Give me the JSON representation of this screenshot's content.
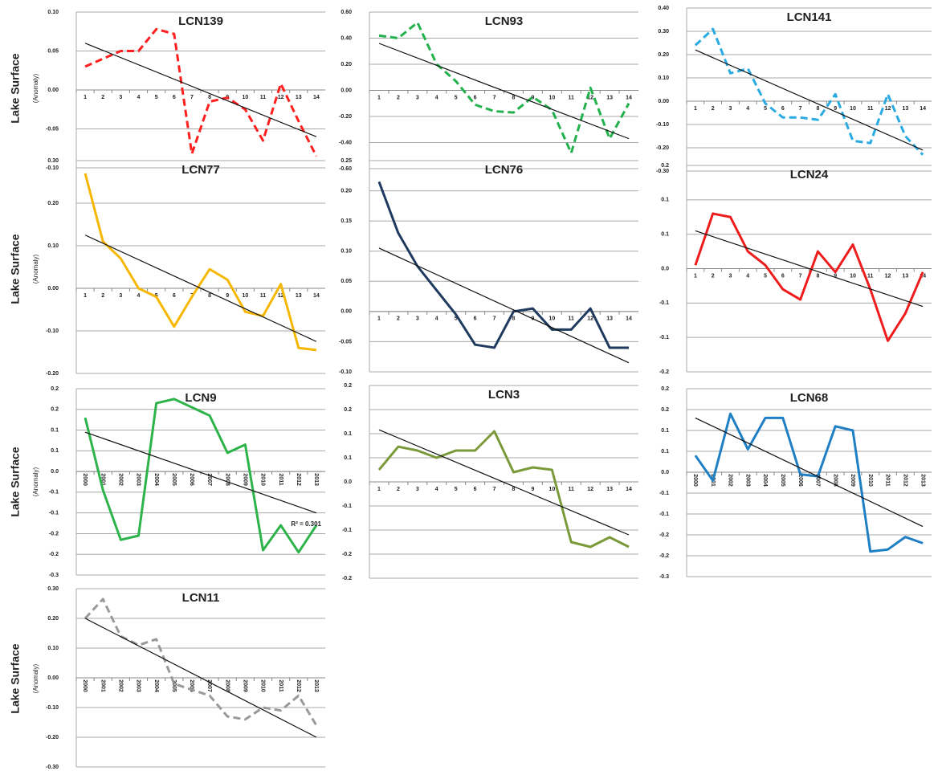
{
  "row_labels": [
    {
      "title": "Lake Surface",
      "subtitle": "(Anomaly)"
    },
    {
      "title": "Lake Surface",
      "subtitle": "(Anomaly)"
    },
    {
      "title": "Lake Surface",
      "subtitle": "(Anomaly)"
    },
    {
      "title": "Lake Surface",
      "subtitle": "(Anomaly)"
    }
  ],
  "chart_data": [
    {
      "type": "line",
      "title": "LCN139",
      "categories": [
        1,
        2,
        3,
        4,
        5,
        6,
        7,
        8,
        9,
        10,
        11,
        12,
        13,
        14
      ],
      "color": "#ff1f1f",
      "dashed": true,
      "values": [
        0.03,
        0.04,
        0.05,
        0.05,
        0.078,
        0.072,
        -0.082,
        -0.015,
        -0.01,
        -0.025,
        -0.065,
        0.008,
        -0.04,
        -0.085
      ],
      "trend": [
        0.06,
        -0.06
      ],
      "ylim": [
        -0.1,
        0.1
      ],
      "yticks": [
        {
          "value": -0.1,
          "label": "-0.10"
        },
        -0.05,
        {
          "value": 0,
          "label": "0.00"
        },
        0.05,
        {
          "value": 0.1,
          "label": "0.10"
        }
      ],
      "grid": true
    },
    {
      "type": "line",
      "title": "LCN93",
      "categories": [
        1,
        2,
        3,
        4,
        5,
        6,
        7,
        8,
        9,
        10,
        11,
        12,
        13,
        14
      ],
      "color": "#22b14c",
      "dashed": true,
      "values": [
        0.42,
        0.4,
        0.52,
        0.2,
        0.07,
        -0.11,
        -0.16,
        -0.17,
        -0.05,
        -0.15,
        -0.48,
        0.02,
        -0.37,
        -0.1
      ],
      "trend": [
        0.36,
        -0.37
      ],
      "ylim": [
        -0.6,
        0.6
      ],
      "yticks": [
        {
          "value": -0.6,
          "label": "-0.60"
        },
        {
          "value": -0.4,
          "label": "-0.40"
        },
        {
          "value": -0.2,
          "label": "-0.20"
        },
        {
          "value": 0,
          "label": "0.00"
        },
        {
          "value": 0.2,
          "label": "0.20"
        },
        {
          "value": 0.4,
          "label": "0.40"
        },
        {
          "value": 0.6,
          "label": "0.60"
        }
      ],
      "grid": true
    },
    {
      "type": "line",
      "title": "LCN141",
      "categories": [
        1,
        2,
        3,
        4,
        5,
        6,
        7,
        8,
        9,
        10,
        11,
        12,
        13,
        14
      ],
      "color": "#29abe2",
      "dashed": true,
      "values": [
        0.24,
        0.31,
        0.12,
        0.14,
        -0.01,
        -0.07,
        -0.07,
        -0.08,
        0.03,
        -0.17,
        -0.18,
        0.03,
        -0.15,
        -0.23
      ],
      "trend": [
        0.22,
        -0.21
      ],
      "ylim": [
        -0.3,
        0.4
      ],
      "yticks": [
        {
          "value": -0.3,
          "label": "-0.30"
        },
        {
          "value": -0.2,
          "label": "-0.20"
        },
        {
          "value": -0.1,
          "label": "-0.10"
        },
        {
          "value": 0,
          "label": "0.00"
        },
        {
          "value": 0.1,
          "label": "0.10"
        },
        {
          "value": 0.2,
          "label": "0.20"
        },
        {
          "value": 0.3,
          "label": "0.30"
        },
        {
          "value": 0.4,
          "label": "0.40"
        }
      ],
      "grid": true
    },
    {
      "type": "line",
      "title": "LCN77",
      "categories": [
        1,
        2,
        3,
        4,
        5,
        6,
        7,
        8,
        9,
        10,
        11,
        12,
        13,
        14
      ],
      "color": "#f5b700",
      "dashed": false,
      "values": [
        0.27,
        0.11,
        0.07,
        0,
        -0.02,
        -0.09,
        -0.02,
        0.045,
        0.02,
        -0.055,
        -0.065,
        0.01,
        -0.14,
        -0.145
      ],
      "trend": [
        0.125,
        -0.125
      ],
      "ylim": [
        -0.2,
        0.3
      ],
      "yticks": [
        {
          "value": -0.2,
          "label": "-0.20"
        },
        {
          "value": -0.1,
          "label": "-0.10"
        },
        {
          "value": 0,
          "label": "0.00"
        },
        {
          "value": 0.1,
          "label": "0.10"
        },
        {
          "value": 0.2,
          "label": "0.20"
        },
        {
          "value": 0.3,
          "label": "0.30"
        }
      ],
      "grid": true
    },
    {
      "type": "line",
      "title": "LCN76",
      "categories": [
        1,
        2,
        3,
        4,
        5,
        6,
        7,
        8,
        9,
        10,
        11,
        12,
        13,
        14
      ],
      "color": "#1f3a5f",
      "dashed": false,
      "values": [
        0.215,
        0.13,
        0.075,
        0.035,
        -0.005,
        -0.055,
        -0.06,
        0,
        0.005,
        -0.03,
        -0.03,
        0.005,
        -0.06,
        -0.06
      ],
      "trend": [
        0.105,
        -0.085
      ],
      "ylim": [
        -0.1,
        0.25
      ],
      "yticks": [
        {
          "value": -0.1,
          "label": "-0.10"
        },
        -0.05,
        {
          "value": 0,
          "label": "0.00"
        },
        0.05,
        {
          "value": 0.1,
          "label": "0.10"
        },
        0.15,
        {
          "value": 0.2,
          "label": "0.20"
        },
        0.25
      ],
      "grid": true
    },
    {
      "type": "line",
      "title": "LCN24",
      "categories": [
        1,
        2,
        3,
        4,
        5,
        6,
        7,
        8,
        9,
        10,
        11,
        12,
        13,
        14
      ],
      "color": "#ee1c1c",
      "dashed": false,
      "values": [
        0.005,
        0.08,
        0.075,
        0.025,
        0.005,
        -0.03,
        -0.045,
        0.025,
        -0.005,
        0.035,
        -0.03,
        -0.105,
        -0.065,
        -0.005
      ],
      "trend": [
        0.055,
        -0.055
      ],
      "ylim": [
        -0.15,
        0.15
      ],
      "yticks": [
        {
          "value": -0.15,
          "label": "-0.2"
        },
        {
          "value": -0.1,
          "label": "-0.1"
        },
        {
          "value": -0.05,
          "label": "-0.1"
        },
        {
          "value": 0,
          "label": "0.0"
        },
        {
          "value": 0.05,
          "label": "0.1"
        },
        {
          "value": 0.1,
          "label": "0.1"
        },
        {
          "value": 0.15,
          "label": "0.2"
        }
      ],
      "grid": true
    },
    {
      "type": "line",
      "title": "LCN9",
      "categories": [
        2000,
        2001,
        2002,
        2003,
        2004,
        2005,
        2006,
        2007,
        2008,
        2009,
        2010,
        2011,
        2012,
        2013
      ],
      "color": "#2db34a",
      "dashed": false,
      "values": [
        0.13,
        -0.045,
        -0.165,
        -0.155,
        0.165,
        0.175,
        0.155,
        0.135,
        0.045,
        0.065,
        -0.19,
        -0.13,
        -0.195,
        -0.13
      ],
      "trend": [
        0.095,
        -0.1
      ],
      "annotation": "R² = 0.301",
      "ylim": [
        -0.25,
        0.2
      ],
      "yticks": [
        {
          "value": -0.25,
          "label": "-0.3"
        },
        {
          "value": -0.2,
          "label": "-0.2"
        },
        {
          "value": -0.15,
          "label": "-0.2"
        },
        {
          "value": -0.1,
          "label": "-0.1"
        },
        {
          "value": -0.05,
          "label": "-0.1"
        },
        {
          "value": 0,
          "label": "0.0"
        },
        {
          "value": 0.05,
          "label": "0.1"
        },
        {
          "value": 0.1,
          "label": "0.1"
        },
        {
          "value": 0.15,
          "label": "0.2"
        },
        {
          "value": 0.2,
          "label": "0.2"
        }
      ],
      "grid": true
    },
    {
      "type": "line",
      "title": "LCN3",
      "categories": [
        1,
        2,
        3,
        4,
        5,
        6,
        7,
        8,
        9,
        10,
        11,
        12,
        13,
        14
      ],
      "color": "#7a9a3a",
      "dashed": false,
      "values": [
        0.025,
        0.073,
        0.065,
        0.05,
        0.065,
        0.065,
        0.105,
        0.02,
        0.03,
        0.025,
        -0.125,
        -0.135,
        -0.115,
        -0.135
      ],
      "trend": [
        0.108,
        -0.11
      ],
      "ylim": [
        -0.2,
        0.2
      ],
      "yticks": [
        {
          "value": -0.2,
          "label": "-0.2"
        },
        {
          "value": -0.15,
          "label": "-0.2"
        },
        {
          "value": -0.1,
          "label": "-0.1"
        },
        {
          "value": -0.05,
          "label": "-0.1"
        },
        {
          "value": 0,
          "label": "0.0"
        },
        {
          "value": 0.05,
          "label": "0.1"
        },
        {
          "value": 0.1,
          "label": "0.1"
        },
        {
          "value": 0.15,
          "label": "0.2"
        },
        {
          "value": 0.2,
          "label": "0.2"
        }
      ],
      "grid": true
    },
    {
      "type": "line",
      "title": "LCN68",
      "categories": [
        2000,
        2001,
        2002,
        2003,
        2004,
        2005,
        2006,
        2007,
        2008,
        2009,
        2010,
        2011,
        2012,
        2013
      ],
      "color": "#1f7fc4",
      "dashed": false,
      "values": [
        0.04,
        -0.02,
        0.14,
        0.055,
        0.13,
        0.13,
        -0.005,
        -0.01,
        0.11,
        0.1,
        -0.19,
        -0.185,
        -0.155,
        -0.17
      ],
      "trend": [
        0.13,
        -0.13
      ],
      "ylim": [
        -0.25,
        0.2
      ],
      "yticks": [
        {
          "value": -0.25,
          "label": "-0.3"
        },
        {
          "value": -0.2,
          "label": "-0.2"
        },
        {
          "value": -0.15,
          "label": "-0.2"
        },
        {
          "value": -0.1,
          "label": "-0.1"
        },
        {
          "value": -0.05,
          "label": "-0.1"
        },
        {
          "value": 0,
          "label": "0.0"
        },
        {
          "value": 0.05,
          "label": "0.1"
        },
        {
          "value": 0.1,
          "label": "0.1"
        },
        {
          "value": 0.15,
          "label": "0.2"
        },
        {
          "value": 0.2,
          "label": "0.2"
        }
      ],
      "grid": true
    },
    {
      "type": "line",
      "title": "LCN11",
      "categories": [
        2000,
        2001,
        2002,
        2003,
        2004,
        2005,
        2006,
        2007,
        2008,
        2009,
        2010,
        2011,
        2012,
        2013
      ],
      "color": "#999999",
      "dashed": true,
      "values": [
        0.2,
        0.265,
        0.14,
        0.11,
        0.13,
        -0.02,
        -0.04,
        -0.06,
        -0.13,
        -0.14,
        -0.1,
        -0.11,
        -0.06,
        -0.16
      ],
      "trend": [
        0.2,
        -0.2
      ],
      "ylim": [
        -0.3,
        0.3
      ],
      "yticks": [
        {
          "value": -0.3,
          "label": "-0.30"
        },
        {
          "value": -0.2,
          "label": "-0.20"
        },
        {
          "value": -0.1,
          "label": "-0.10"
        },
        {
          "value": 0,
          "label": "0.00"
        },
        {
          "value": 0.1,
          "label": "0.10"
        },
        {
          "value": 0.2,
          "label": "0.20"
        },
        {
          "value": 0.3,
          "label": "0.30"
        }
      ],
      "grid": true
    }
  ]
}
